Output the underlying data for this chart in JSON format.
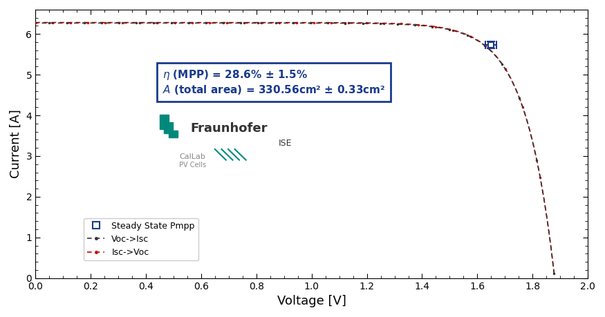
{
  "title": "",
  "xlabel": "Voltage [V]",
  "ylabel": "Current [A]",
  "xlim": [
    0.0,
    2.0
  ],
  "ylim": [
    0.0,
    6.6
  ],
  "xticks": [
    0.0,
    0.2,
    0.4,
    0.6,
    0.8,
    1.0,
    1.2,
    1.4,
    1.6,
    1.8,
    2.0
  ],
  "yticks": [
    0,
    1,
    2,
    3,
    4,
    5,
    6
  ],
  "isc": 6.27,
  "voc": 1.88,
  "vmp": 1.65,
  "imp": 5.73,
  "annotation_text_line1": "η (MPP) = 28.6% ± 1.5%",
  "annotation_text_line2": "A (total area) = 330.56cm² ± 0.33cm²",
  "annotation_color": "#1a3a8c",
  "curve_color_dark": "#333333",
  "curve_color_red": "#cc0000",
  "mpp_color": "#1a3a8c",
  "fraunhofer_green": "#009999",
  "legend_labels": [
    "Steady State Pmpp",
    "Voc->Isc",
    "Isc->Voc"
  ],
  "background_color": "#ffffff"
}
